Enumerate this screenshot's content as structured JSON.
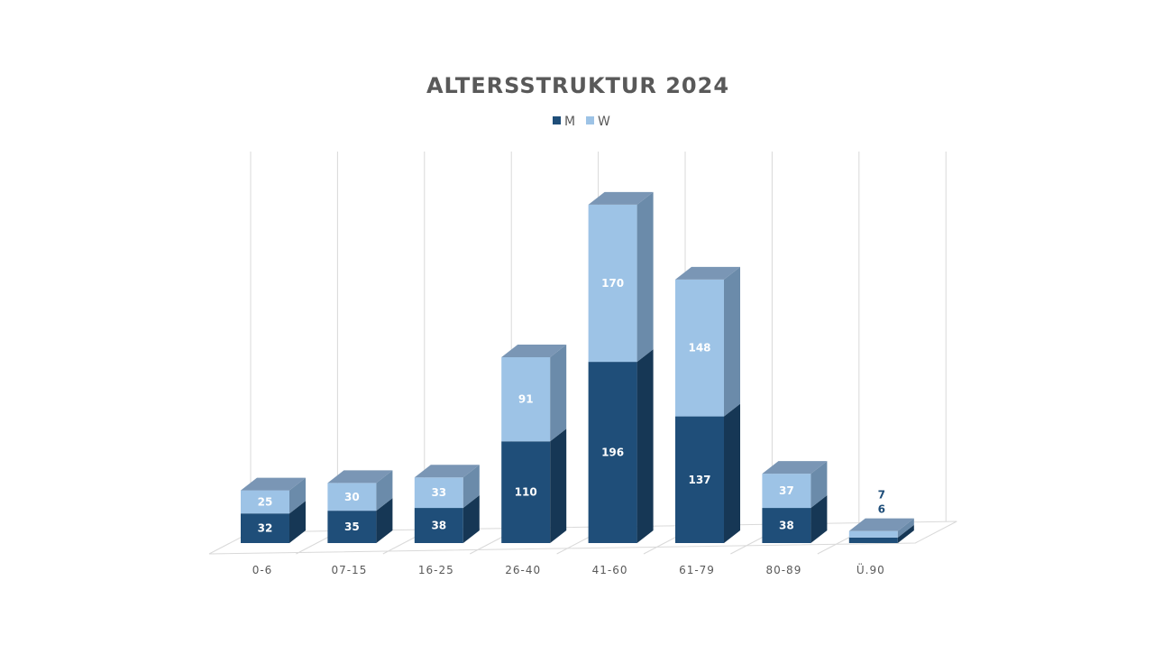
{
  "chart_data": {
    "type": "bar",
    "stacked": true,
    "style": "3d",
    "title": "ALTERSSTRUKTUR 2024",
    "xlabel": "",
    "ylabel": "",
    "categories": [
      "0-6",
      "07-15",
      "16-25",
      "26-40",
      "41-60",
      "61-79",
      "80-89",
      "Ü.90"
    ],
    "series": [
      {
        "name": "M",
        "values": [
          32,
          35,
          38,
          110,
          196,
          137,
          38,
          6
        ],
        "color": "#1F4E79"
      },
      {
        "name": "W",
        "values": [
          25,
          30,
          33,
          91,
          170,
          148,
          37,
          7
        ],
        "color": "#9DC3E6"
      }
    ],
    "ylim": [
      0,
      400
    ],
    "grid": true,
    "legend": "top-center",
    "data_labels": true
  }
}
